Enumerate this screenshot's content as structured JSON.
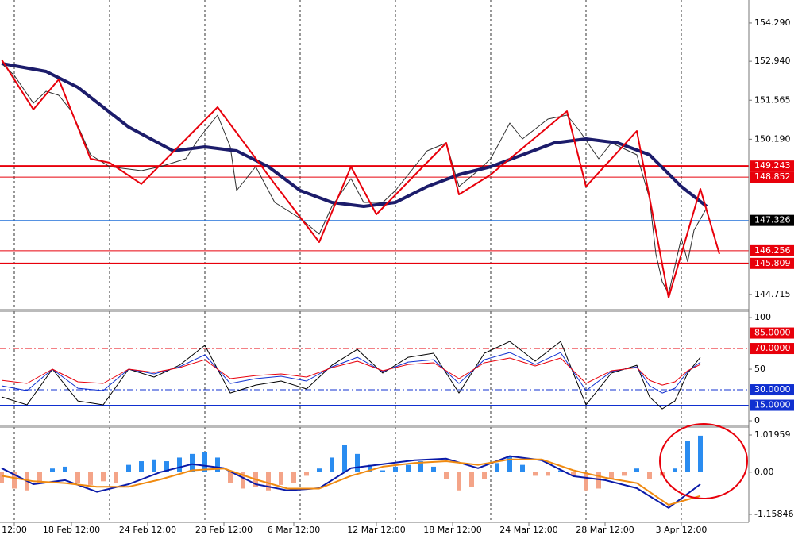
{
  "chart_data": [
    {
      "type": "line",
      "xlim": [
        -0.25,
        117.625
      ],
      "xgrid": [
        2,
        17,
        32,
        47,
        62,
        77,
        92,
        107
      ],
      "ylim": [
        144.18,
        155.1
      ],
      "yticks": [
        {
          "value": 154.29,
          "label": "154.290"
        },
        {
          "value": 152.94,
          "label": "152.940"
        },
        151.565,
        {
          "value": 150.19,
          "label": "150.190"
        },
        144.715
      ],
      "hlines": [
        {
          "value": 149.243,
          "color": "#e8000b",
          "width": 2
        },
        {
          "value": 148.852,
          "color": "#e8000b",
          "width": 1
        },
        {
          "value": 147.326,
          "color": "#1e6fd9",
          "width": 0.7,
          "box": "#000000"
        },
        {
          "value": 146.256,
          "color": "#e8000b",
          "width": 1
        },
        {
          "value": 145.809,
          "color": "#e8000b",
          "width": 2
        }
      ],
      "series": [
        {
          "color": "#2e2e2e",
          "width": 1,
          "x": [
            0,
            2,
            5,
            7,
            9,
            11,
            14,
            17,
            22,
            25,
            29,
            31,
            34,
            36,
            37,
            40,
            43,
            47,
            50,
            52,
            55,
            57,
            60,
            62,
            65,
            67,
            70,
            72,
            75,
            77,
            80,
            82,
            86,
            89,
            91,
            94,
            96,
            100,
            102,
            103,
            104,
            105,
            107,
            108,
            109,
            111
          ],
          "values": [
            152.86,
            152.44,
            151.46,
            151.88,
            151.74,
            151.18,
            149.64,
            149.22,
            149.08,
            149.22,
            149.5,
            150.2,
            151.04,
            149.92,
            148.38,
            149.22,
            147.96,
            147.4,
            146.84,
            147.82,
            148.8,
            147.96,
            147.96,
            148.38,
            149.22,
            149.78,
            150.06,
            148.52,
            149.08,
            149.5,
            150.76,
            150.2,
            150.9,
            151.04,
            150.48,
            149.5,
            150.06,
            149.64,
            148.1,
            146.14,
            145.16,
            144.74,
            146.7,
            145.87,
            146.98,
            147.77
          ]
        },
        {
          "color": "#1c1c6b",
          "width": 4,
          "x": [
            0,
            7,
            12,
            20,
            27,
            32,
            37,
            42,
            47,
            52,
            57,
            62,
            67,
            72,
            77,
            82,
            87,
            92,
            97,
            102,
            107,
            111
          ],
          "values": [
            152.86,
            152.58,
            152.02,
            150.62,
            149.78,
            149.92,
            149.78,
            149.22,
            148.38,
            147.96,
            147.82,
            147.96,
            148.52,
            148.94,
            149.22,
            149.64,
            150.06,
            150.2,
            150.06,
            149.64,
            148.52,
            147.82
          ]
        },
        {
          "color": "#e8000b",
          "width": 2,
          "x": [
            0,
            5,
            9,
            14,
            17,
            22,
            34,
            43,
            50,
            55,
            59,
            70,
            72,
            77,
            89,
            92,
            100,
            105,
            110,
            113
          ],
          "values": [
            153.0,
            151.24,
            152.3,
            149.5,
            149.36,
            148.61,
            151.32,
            148.61,
            146.56,
            149.22,
            147.54,
            150.06,
            148.24,
            148.94,
            151.18,
            148.52,
            150.48,
            144.6,
            148.44,
            146.14
          ]
        }
      ]
    },
    {
      "type": "line",
      "ylim": [
        -4.6,
        106.2
      ],
      "yticks": [
        100,
        50,
        0
      ],
      "hlines": [
        {
          "value": 85,
          "label": "85.0000",
          "color": "#e8000b",
          "width": 1,
          "box": "#e8000b"
        },
        {
          "value": 70,
          "label": "70.0000",
          "color": "#e8000b",
          "width": 1,
          "dash": "8,3,2,3",
          "box": "#e8000b"
        },
        {
          "value": 30,
          "label": "30.0000",
          "color": "#1030d0",
          "width": 1,
          "dash": "8,3,2,3",
          "box": "#1030d0"
        },
        {
          "value": 15,
          "label": "15.0000",
          "color": "#1030d0",
          "width": 1,
          "box": "#1030d0"
        }
      ],
      "series": [
        {
          "color": "#000000",
          "width": 1,
          "x": [
            0,
            4,
            8,
            12,
            16,
            20,
            24,
            28,
            32,
            36,
            40,
            44,
            48,
            52,
            56,
            60,
            64,
            68,
            72,
            76,
            80,
            84,
            88,
            92,
            96,
            100,
            102,
            104,
            106,
            108,
            110
          ],
          "values": [
            23.1,
            15.4,
            50,
            19.2,
            15.4,
            50,
            42.3,
            53.8,
            73.1,
            26.9,
            34.6,
            38.5,
            30.8,
            53.8,
            69.2,
            46.2,
            61.5,
            65.4,
            26.9,
            65.4,
            76.9,
            57.7,
            76.9,
            15.4,
            46.2,
            53.8,
            23.1,
            11.5,
            19.2,
            46.2,
            61.5
          ]
        },
        {
          "color": "#1030d0",
          "width": 1,
          "x": [
            0,
            4,
            8,
            12,
            16,
            20,
            24,
            28,
            32,
            36,
            40,
            44,
            48,
            52,
            56,
            60,
            64,
            68,
            72,
            76,
            80,
            84,
            88,
            92,
            96,
            100,
            102,
            104,
            106,
            108,
            110
          ],
          "values": [
            33.9,
            29.2,
            50,
            31.5,
            29.2,
            50,
            45.4,
            52.3,
            63.9,
            36.1,
            40.8,
            43.1,
            38.5,
            52.3,
            61.5,
            47.7,
            56.9,
            59.2,
            36.1,
            59.2,
            66.1,
            54.6,
            66.1,
            29.2,
            47.7,
            52.3,
            33.9,
            26.9,
            31.5,
            47.7,
            56.9
          ]
        },
        {
          "color": "#e8000b",
          "width": 1,
          "x": [
            0,
            4,
            8,
            12,
            16,
            20,
            24,
            28,
            32,
            36,
            40,
            44,
            48,
            52,
            56,
            60,
            64,
            68,
            72,
            76,
            80,
            84,
            88,
            92,
            96,
            100,
            102,
            104,
            106,
            108,
            110
          ],
          "values": [
            39.2,
            36.2,
            50,
            37.7,
            36.2,
            50,
            46.9,
            51.5,
            59.2,
            40.8,
            43.8,
            45.4,
            42.3,
            51.5,
            57.7,
            48.5,
            54.6,
            56.2,
            40.8,
            56.2,
            60.8,
            53.1,
            60.8,
            36.2,
            48.5,
            51.5,
            39.2,
            34.6,
            37.7,
            48.5,
            54.6
          ]
        }
      ]
    },
    {
      "type": "bar",
      "ylim": [
        -1.3763,
        1.2375
      ],
      "yticks": [
        1.01959,
        {
          "value": 0,
          "label": "0.00"
        },
        -1.15846
      ],
      "xticks": [
        {
          "value": 2,
          "label": "12:00"
        },
        {
          "value": 11,
          "label": "18 Feb 12:00"
        },
        {
          "value": 23,
          "label": "24 Feb 12:00"
        },
        {
          "value": 35,
          "label": "28 Feb 12:00"
        },
        {
          "value": 46,
          "label": "6 Mar 12:00"
        },
        {
          "value": 59,
          "label": "12 Mar 12:00"
        },
        {
          "value": 71,
          "label": "18 Mar 12:00"
        },
        {
          "value": 83,
          "label": "24 Mar 12:00"
        },
        {
          "value": 95,
          "label": "28 Mar 12:00"
        },
        {
          "value": 107,
          "label": "3 Apr 12:00"
        }
      ],
      "color_up": "#2a8cf0",
      "color_down": "#f4a488",
      "x": [
        0,
        2,
        4,
        6,
        8,
        10,
        12,
        14,
        16,
        18,
        20,
        22,
        24,
        26,
        28,
        30,
        32,
        34,
        36,
        38,
        40,
        42,
        44,
        46,
        48,
        50,
        52,
        54,
        56,
        58,
        60,
        62,
        64,
        66,
        68,
        70,
        72,
        74,
        76,
        78,
        80,
        82,
        84,
        86,
        88,
        90,
        92,
        94,
        96,
        98,
        100,
        102,
        104,
        106,
        108,
        110
      ],
      "values": [
        -0.3,
        -0.45,
        -0.5,
        -0.3,
        0.1,
        0.15,
        -0.3,
        -0.35,
        -0.25,
        -0.3,
        0.2,
        0.3,
        0.35,
        0.3,
        0.4,
        0.5,
        0.55,
        0.4,
        -0.3,
        -0.45,
        -0.4,
        -0.5,
        -0.35,
        -0.3,
        -0.1,
        0.1,
        0.4,
        0.75,
        0.5,
        0.2,
        0.05,
        0.15,
        0.2,
        0.3,
        0.15,
        -0.2,
        -0.5,
        -0.4,
        -0.2,
        0.25,
        0.45,
        0.2,
        -0.1,
        -0.1,
        0.05,
        -0.1,
        -0.5,
        -0.45,
        -0.2,
        -0.1,
        0.1,
        -0.2,
        -0.1,
        0.1,
        0.85,
        1.0
      ],
      "series": [
        {
          "color": "#0a1aa8",
          "width": 2,
          "x": [
            0,
            5,
            10,
            15,
            20,
            25,
            30,
            35,
            40,
            45,
            50,
            55,
            60,
            65,
            70,
            75,
            80,
            85,
            90,
            95,
            100,
            105,
            110
          ],
          "values": [
            0.11,
            -0.33,
            -0.22,
            -0.54,
            -0.33,
            0,
            0.22,
            0.11,
            -0.33,
            -0.5,
            -0.44,
            0.11,
            0.22,
            0.33,
            0.37,
            0.11,
            0.44,
            0.33,
            -0.11,
            -0.22,
            -0.44,
            -0.98,
            -0.33
          ]
        },
        {
          "color": "#f08a10",
          "width": 2,
          "x": [
            0,
            5,
            10,
            15,
            20,
            25,
            30,
            35,
            40,
            45,
            50,
            55,
            60,
            65,
            70,
            75,
            80,
            85,
            90,
            95,
            100,
            105,
            110
          ],
          "values": [
            -0.1,
            -0.25,
            -0.3,
            -0.4,
            -0.4,
            -0.2,
            0.05,
            0.1,
            -0.2,
            -0.45,
            -0.45,
            -0.1,
            0.15,
            0.25,
            0.3,
            0.2,
            0.35,
            0.35,
            0.05,
            -0.15,
            -0.3,
            -0.9,
            -0.65
          ]
        }
      ]
    }
  ]
}
